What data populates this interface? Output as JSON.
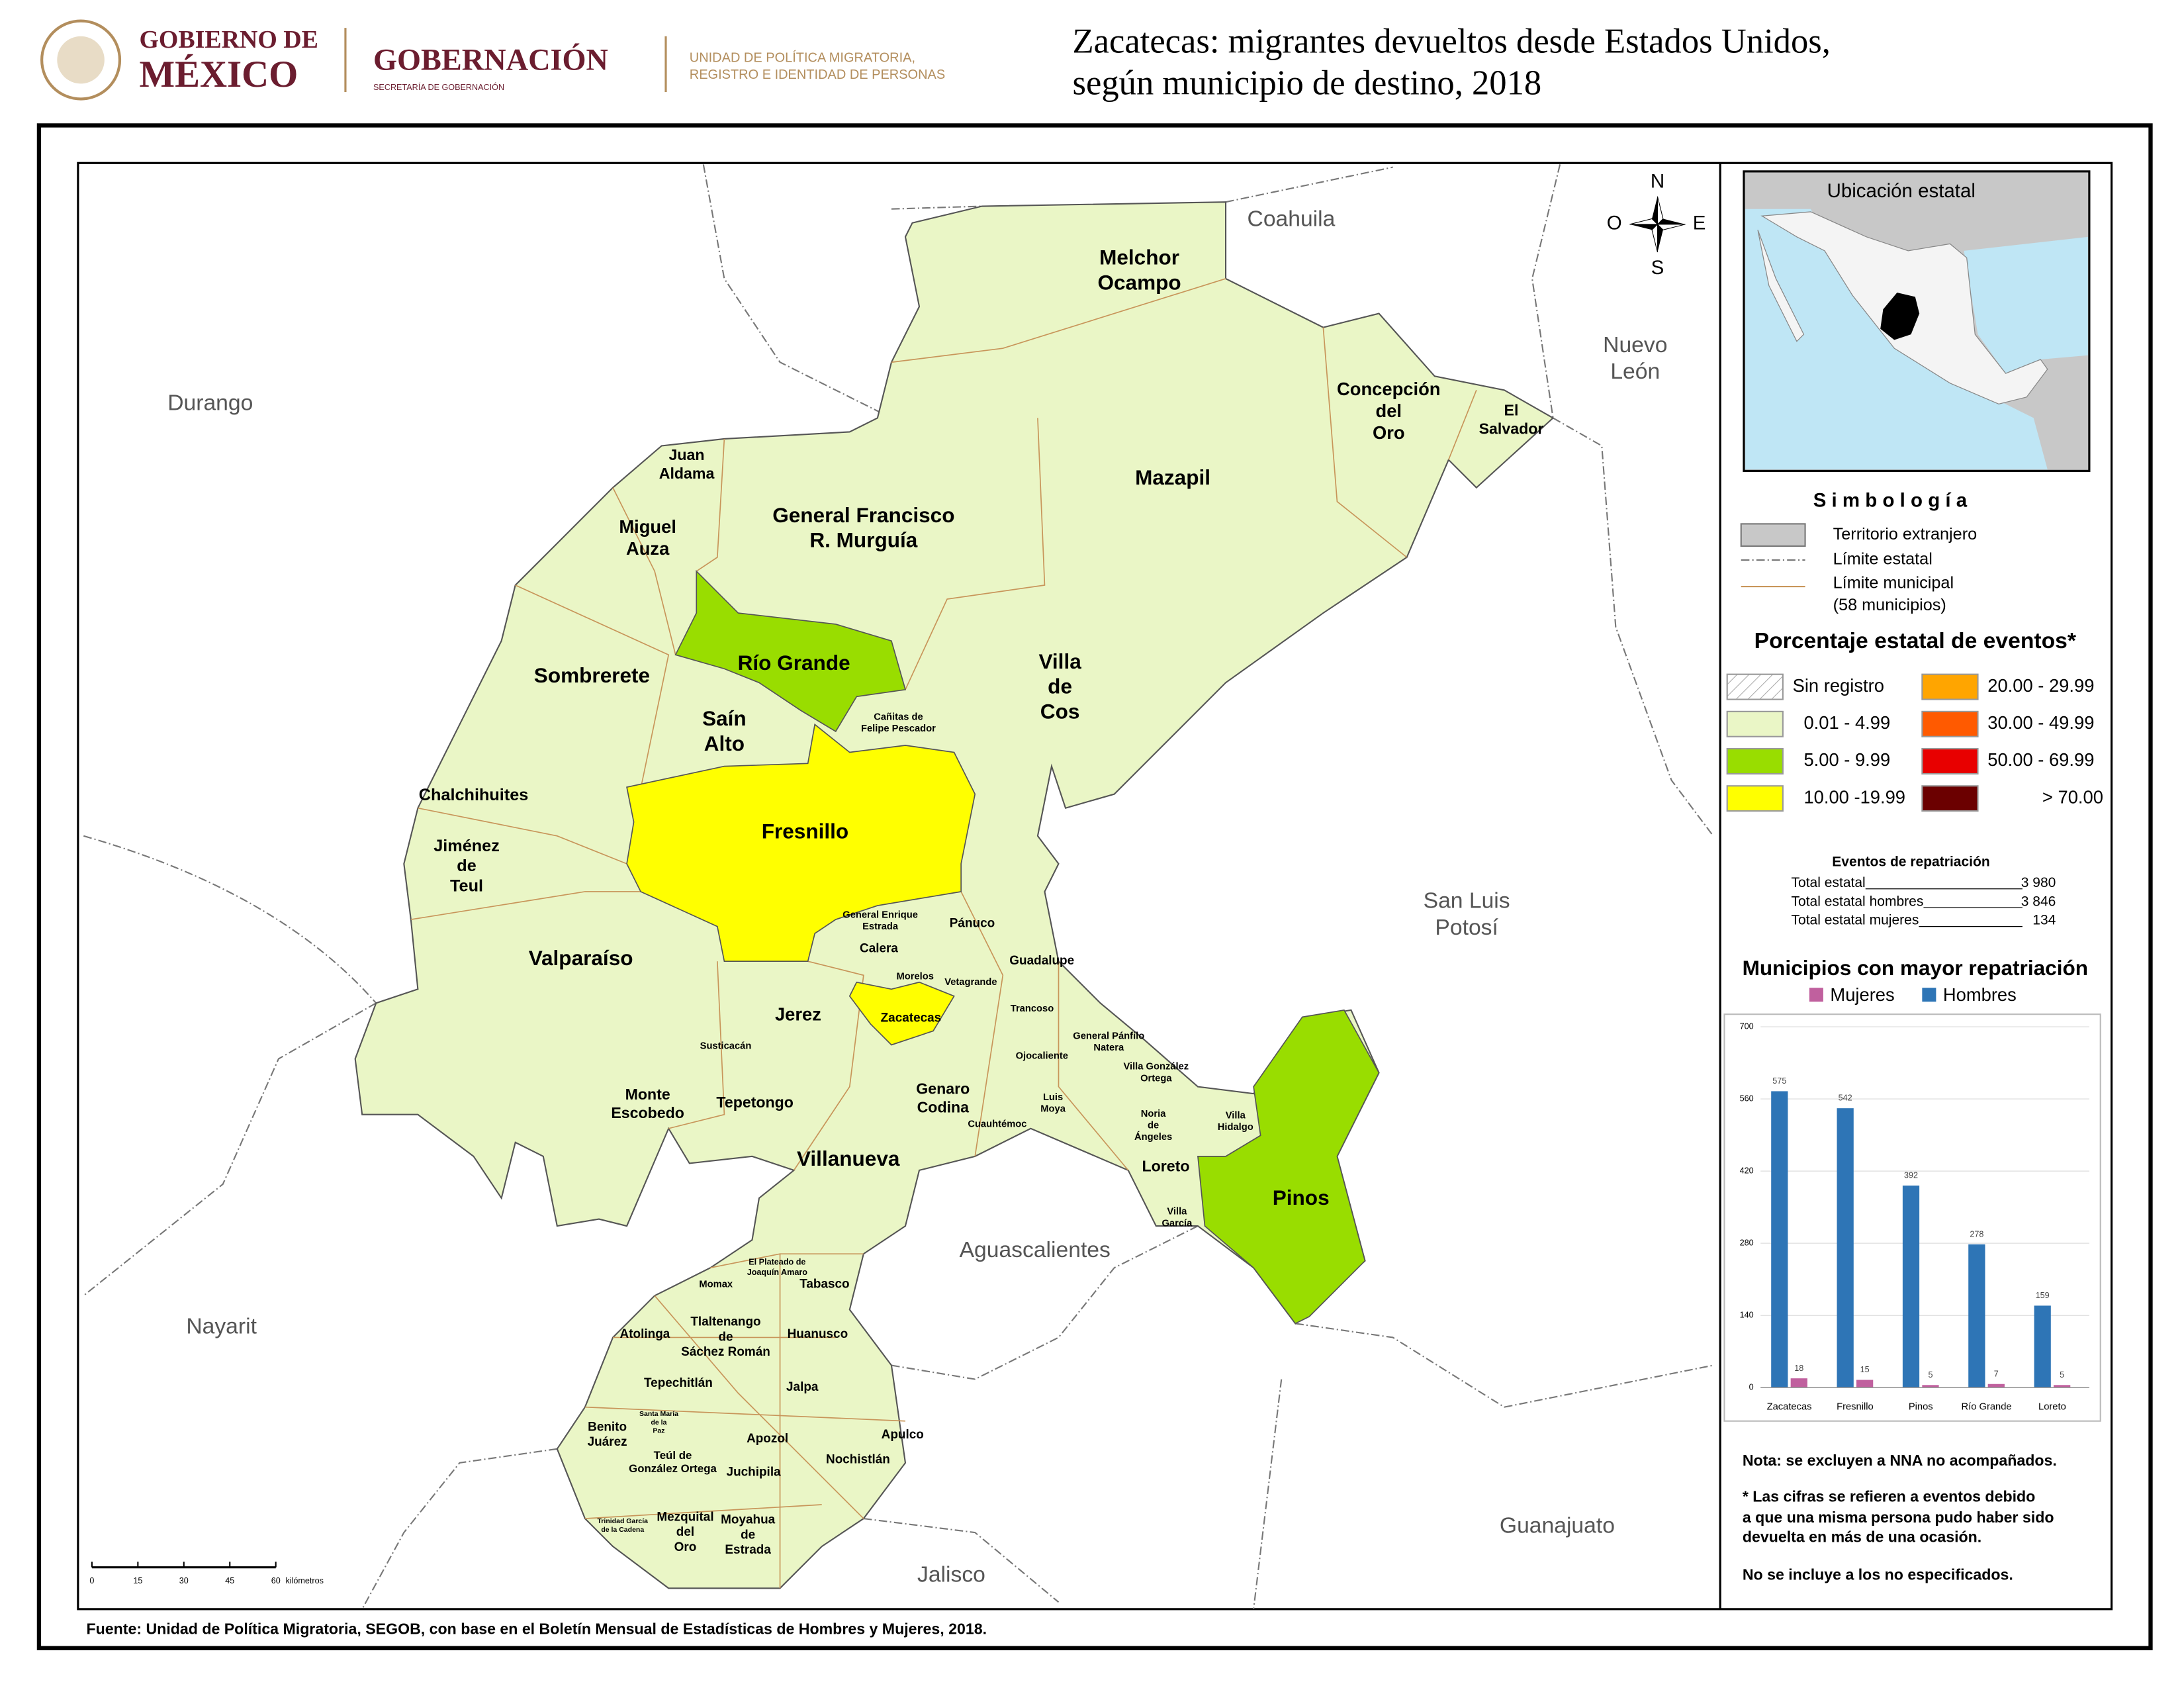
{
  "header": {
    "logo_line1": "GOBIERNO DE",
    "logo_line2": "MÉXICO",
    "agency": "GOBERNACIÓN",
    "agency_sub": "SECRETARÍA DE GOBERNACIÓN",
    "unit_line1": "UNIDAD DE POLÍTICA MIGRATORIA,",
    "unit_line2": "REGISTRO E IDENTIDAD DE PERSONAS",
    "title_line1": "Zacatecas: migrantes devueltos desde Estados Unidos,",
    "title_line2": "según municipio de destino, 2018"
  },
  "map": {
    "compass": {
      "north": "N",
      "south": "S",
      "west": "O",
      "east": "E"
    },
    "states": [
      {
        "lines": [
          "Coahuila"
        ]
      },
      {
        "lines": [
          "Nuevo",
          "León"
        ]
      },
      {
        "lines": [
          "Durango"
        ]
      },
      {
        "lines": [
          "San Luis",
          "Potosí"
        ]
      },
      {
        "lines": [
          "Aguascalientes"
        ]
      },
      {
        "lines": [
          "Nayarit"
        ]
      },
      {
        "lines": [
          "Guanajuato"
        ]
      },
      {
        "lines": [
          "Jalisco"
        ]
      }
    ],
    "municipalities": [
      {
        "lines": [
          "Melchor",
          "Ocampo"
        ]
      },
      {
        "lines": [
          "Concepción",
          "del",
          "Oro"
        ]
      },
      {
        "lines": [
          "El",
          "Salvador"
        ]
      },
      {
        "lines": [
          "Mazapil"
        ]
      },
      {
        "lines": [
          "Juan",
          "Aldama"
        ]
      },
      {
        "lines": [
          "General Francisco",
          "R. Murguía"
        ]
      },
      {
        "lines": [
          "Miguel",
          "Auza"
        ]
      },
      {
        "lines": [
          "Río Grande"
        ]
      },
      {
        "lines": [
          "Sombrerete"
        ]
      },
      {
        "lines": [
          "Villa",
          "de",
          "Cos"
        ]
      },
      {
        "lines": [
          "Saín",
          "Alto"
        ]
      },
      {
        "lines": [
          "Cañitas de",
          "Felipe Pescador"
        ]
      },
      {
        "lines": [
          "Chalchihuites"
        ]
      },
      {
        "lines": [
          "Fresnillo"
        ]
      },
      {
        "lines": [
          "Jiménez",
          "de",
          "Teul"
        ]
      },
      {
        "lines": [
          "General Enrique",
          "Estrada"
        ]
      },
      {
        "lines": [
          "Pánuco"
        ]
      },
      {
        "lines": [
          "Valparaíso"
        ]
      },
      {
        "lines": [
          "Calera"
        ]
      },
      {
        "lines": [
          "Guadalupe"
        ]
      },
      {
        "lines": [
          "Morelos"
        ]
      },
      {
        "lines": [
          "Vetagrande"
        ]
      },
      {
        "lines": [
          "Jerez"
        ]
      },
      {
        "lines": [
          "Zacatecas"
        ]
      },
      {
        "lines": [
          "Trancoso"
        ]
      },
      {
        "lines": [
          "Susticacán"
        ]
      },
      {
        "lines": [
          "General Pánfilo",
          "Natera"
        ]
      },
      {
        "lines": [
          "Ojocaliente"
        ]
      },
      {
        "lines": [
          "Villa González",
          "Ortega"
        ]
      },
      {
        "lines": [
          "Monte",
          "Escobedo"
        ]
      },
      {
        "lines": [
          "Tepetongo"
        ]
      },
      {
        "lines": [
          "Genaro",
          "Codina"
        ]
      },
      {
        "lines": [
          "Luis",
          "Moya"
        ]
      },
      {
        "lines": [
          "Cuauhtémoc"
        ]
      },
      {
        "lines": [
          "Noria",
          "de",
          "Ángeles"
        ]
      },
      {
        "lines": [
          "Villa",
          "Hidalgo"
        ]
      },
      {
        "lines": [
          "Villanueva"
        ]
      },
      {
        "lines": [
          "Loreto"
        ]
      },
      {
        "lines": [
          "Pinos"
        ]
      },
      {
        "lines": [
          "Villa",
          "García"
        ]
      },
      {
        "lines": [
          "El Plateado de",
          "Joaquín Amaro"
        ]
      },
      {
        "lines": [
          "Momax"
        ]
      },
      {
        "lines": [
          "Tabasco"
        ]
      },
      {
        "lines": [
          "Tlaltenango",
          "de",
          "Sáchez Román"
        ]
      },
      {
        "lines": [
          "Atolinga"
        ]
      },
      {
        "lines": [
          "Huanusco"
        ]
      },
      {
        "lines": [
          "Tepechitlán"
        ]
      },
      {
        "lines": [
          "Jalpa"
        ]
      },
      {
        "lines": [
          "Santa María",
          "de la",
          "Paz"
        ]
      },
      {
        "lines": [
          "Benito",
          "Juárez"
        ]
      },
      {
        "lines": [
          "Apozol"
        ]
      },
      {
        "lines": [
          "Apulco"
        ]
      },
      {
        "lines": [
          "Teúl de",
          "González Ortega"
        ]
      },
      {
        "lines": [
          "Nochistlán"
        ]
      },
      {
        "lines": [
          "Juchipila"
        ]
      },
      {
        "lines": [
          "Trinidad García",
          "de la Cadena"
        ]
      },
      {
        "lines": [
          "Mezquital",
          "del",
          "Oro"
        ]
      },
      {
        "lines": [
          "Moyahua",
          "de",
          "Estrada"
        ]
      }
    ],
    "scale": {
      "ticks": [
        0,
        15,
        30,
        45,
        60
      ],
      "unit": "kilómetros"
    }
  },
  "inset": {
    "title": "Ubicación estatal"
  },
  "legend": {
    "title": "S i m b o l o g í a",
    "foreign": "Territorio extranjero",
    "state_limit": "Límite estatal",
    "municipal_limit": "Límite municipal",
    "municipal_count": "(58 municipios)",
    "classes_title": "Porcentaje estatal de eventos*",
    "classes": [
      {
        "label": "Sin registro",
        "color": "#ffffff"
      },
      {
        "label": "0.01  - 4.99",
        "color": "#eaf6c6"
      },
      {
        "label": "5.00  - 9.99",
        "color": "#99dd00"
      },
      {
        "label": "10.00 -19.99",
        "color": "#ffff00"
      },
      {
        "label": "20.00 - 29.99",
        "color": "#ffa500"
      },
      {
        "label": "30.00 - 49.99",
        "color": "#ff5a00"
      },
      {
        "label": "50.00 - 69.99",
        "color": "#e80000"
      },
      {
        "label": "> 70.00",
        "color": "#6b0000"
      }
    ]
  },
  "totals": {
    "title": "Eventos de repatriación",
    "rows": [
      {
        "label": "Total estatal",
        "value": "3 980"
      },
      {
        "label": "Total estatal hombres",
        "value": "3 846"
      },
      {
        "label": "Total estatal mujeres",
        "value": "134"
      }
    ]
  },
  "chart_data": {
    "type": "bar",
    "title": "Municipios con mayor repatriación",
    "categories": [
      "Zacatecas",
      "Fresnillo",
      "Pinos",
      "Río Grande",
      "Loreto"
    ],
    "series": [
      {
        "name": "Mujeres",
        "color": "#c0609e",
        "values": [
          18,
          15,
          5,
          7,
          5
        ]
      },
      {
        "name": "Hombres",
        "color": "#2e75b6",
        "values": [
          575,
          542,
          392,
          278,
          159
        ]
      }
    ],
    "ylim": [
      0,
      700
    ],
    "yticks": [
      0,
      140,
      280,
      420,
      560,
      700
    ],
    "grid": true
  },
  "notes": [
    "Nota: se excluyen a NNA no acompañados.",
    "* Las cifras se refieren a eventos debido",
    "a que una misma persona pudo haber sido",
    "devuelta en más de una ocasión.",
    "No se incluye a los no especificados."
  ],
  "source": "Fuente: Unidad de Política Migratoria, SEGOB, con base en el Boletín Mensual de Estadísticas de Hombres y Mujeres, 2018."
}
